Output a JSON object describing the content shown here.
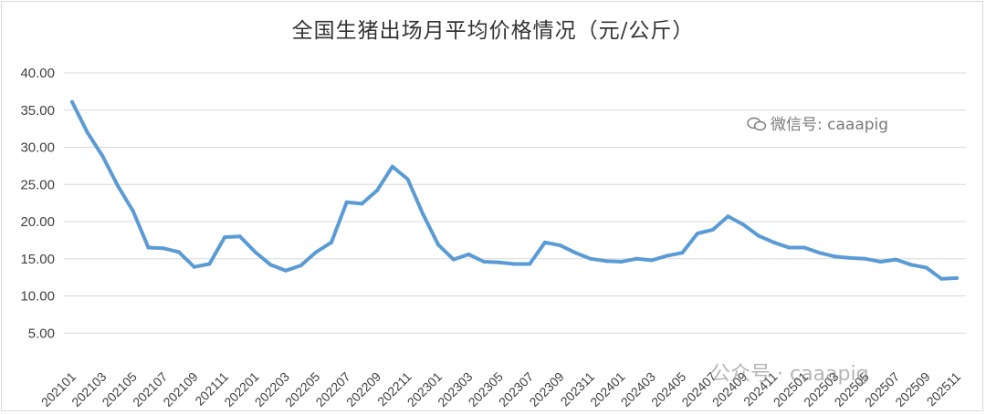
{
  "chart_data": {
    "type": "line",
    "title": "全国生猪出场月平均价格情况（元/公斤）",
    "xlabel": "",
    "ylabel": "",
    "ylim": [
      0,
      40
    ],
    "yticks": [
      "5.00",
      "10.00",
      "15.00",
      "20.00",
      "25.00",
      "30.00",
      "35.00",
      "40.00"
    ],
    "grid": true,
    "legend": "none",
    "line_color": "#5b9bd5",
    "x": [
      "202101",
      "202102",
      "202103",
      "202104",
      "202105",
      "202106",
      "202107",
      "202108",
      "202109",
      "202110",
      "202111",
      "202112",
      "202201",
      "202202",
      "202203",
      "202204",
      "202205",
      "202206",
      "202207",
      "202208",
      "202209",
      "202210",
      "202211",
      "202212",
      "202301",
      "202302",
      "202303",
      "202304",
      "202305",
      "202306",
      "202307",
      "202308",
      "202309",
      "202310",
      "202311",
      "202312",
      "202401",
      "202402",
      "202403",
      "202404",
      "202405",
      "202406",
      "202407",
      "202408",
      "202409",
      "202410",
      "202411",
      "202412",
      "202501",
      "202502",
      "202503",
      "202504",
      "202505",
      "202506",
      "202507",
      "202508",
      "202509",
      "202510",
      "202511"
    ],
    "xtick_labels": [
      "202101",
      "202103",
      "202105",
      "202107",
      "202109",
      "202111",
      "202201",
      "202203",
      "202205",
      "202207",
      "202209",
      "202211",
      "202301",
      "202303",
      "202305",
      "202307",
      "202309",
      "202311",
      "202401",
      "202403",
      "202405",
      "202407",
      "202409",
      "202411",
      "202501",
      "202503",
      "202505",
      "202507",
      "202509",
      "202511"
    ],
    "values": [
      36.1,
      32.0,
      28.8,
      24.8,
      21.4,
      16.5,
      16.4,
      15.9,
      13.9,
      14.3,
      17.9,
      18.0,
      15.9,
      14.2,
      13.4,
      14.1,
      15.9,
      17.2,
      22.6,
      22.4,
      24.2,
      27.4,
      25.7,
      21.0,
      16.9,
      14.9,
      15.6,
      14.6,
      14.5,
      14.3,
      14.3,
      17.2,
      16.8,
      15.8,
      15.0,
      14.7,
      14.6,
      15.0,
      14.8,
      15.4,
      15.8,
      18.4,
      18.9,
      20.7,
      19.6,
      18.1,
      17.2,
      16.5,
      16.5,
      15.8,
      15.3,
      15.1,
      15.0,
      14.6,
      14.9,
      14.2,
      13.8,
      12.3,
      12.4
    ]
  },
  "watermarks": {
    "top": "微信号: caaapig",
    "bottom": "公众号 · caaapig"
  }
}
